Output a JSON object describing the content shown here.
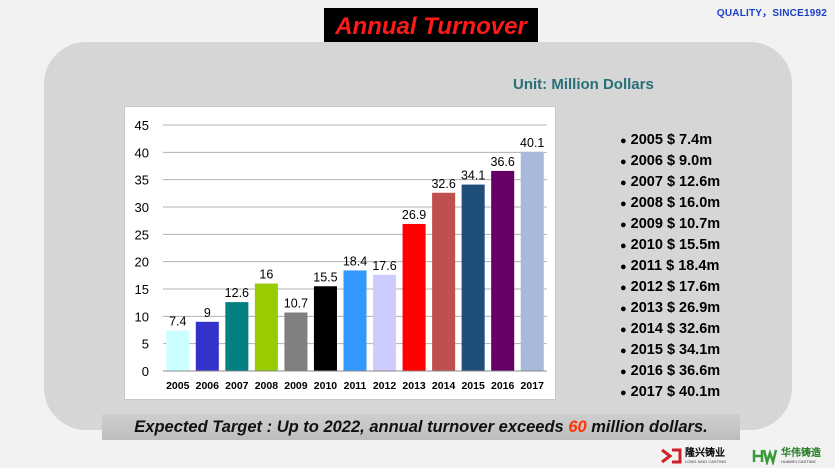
{
  "header": {
    "title": "Annual Turnover",
    "tagline": "QUALITY，SINCE1992"
  },
  "unit_label": "Unit: Million Dollars",
  "chart_data": {
    "type": "bar",
    "categories": [
      "2005",
      "2006",
      "2007",
      "2008",
      "2009",
      "2010",
      "2011",
      "2012",
      "2013",
      "2014",
      "2015",
      "2016",
      "2017"
    ],
    "values": [
      7.4,
      9,
      12.6,
      16,
      10.7,
      15.5,
      18.4,
      17.6,
      26.9,
      32.6,
      34.1,
      36.6,
      40.1
    ],
    "value_labels": [
      "7.4",
      "9",
      "12.6",
      "16",
      "10.7",
      "15.5",
      "18.4",
      "17.6",
      "26.9",
      "32.6",
      "34.1",
      "36.6",
      "40.1"
    ],
    "colors": [
      "#ccffff",
      "#3333cc",
      "#008080",
      "#99cc00",
      "#808080",
      "#000000",
      "#3399ff",
      "#ccccff",
      "#ff0000",
      "#c0504d",
      "#1f4e79",
      "#660066",
      "#a9b9dc"
    ],
    "ylim": [
      0,
      45
    ],
    "yticks": [
      0,
      5,
      10,
      15,
      20,
      25,
      30,
      35,
      40,
      45
    ],
    "grid": true,
    "title": "",
    "xlabel": "",
    "ylabel": ""
  },
  "summary_list": [
    "2005 $ 7.4m",
    "2006 $ 9.0m",
    "2007 $ 12.6m",
    "2008 $ 16.0m",
    "2009 $ 10.7m",
    "2010 $ 15.5m",
    "2011 $ 18.4m",
    "2012 $ 17.6m",
    "2013 $ 26.9m",
    "2014 $ 32.6m",
    "2015 $ 34.1m",
    "2016 $ 36.6m",
    "2017 $ 40.1m"
  ],
  "target": {
    "prefix": "Expected Target : Up to 2022, annual turnover exceeds ",
    "highlight": "60",
    "suffix": " million dollars."
  },
  "logos": {
    "logo1_cn": "隆兴铸业",
    "logo1_en": "LONG XING CASTING",
    "logo2_cn": "华伟铸造",
    "logo2_en": "HUAWEI CASTING"
  }
}
